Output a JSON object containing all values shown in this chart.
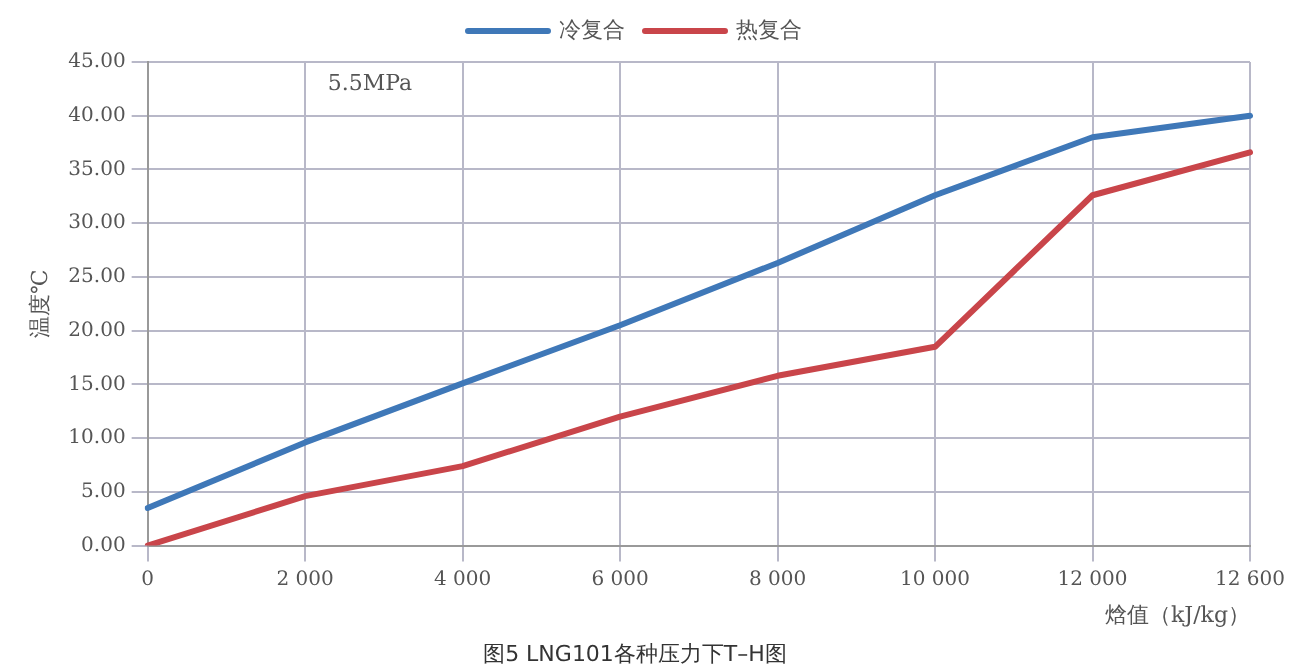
{
  "chart_data": {
    "type": "line",
    "title": "图5 LNG101各种压力下T–H图",
    "xlabel": "焓值（kJ/kg）",
    "ylabel": "温度℃",
    "annotations": [
      "5.5MPa"
    ],
    "categories": [
      "0",
      "2 000",
      "4 000",
      "6 000",
      "8 000",
      "10 000",
      "12 000",
      "12 600"
    ],
    "series": [
      {
        "name": "冷复合",
        "color": "#3f78b8",
        "values": [
          3.5,
          9.6,
          15.1,
          20.5,
          26.3,
          32.6,
          38.0,
          40.0
        ]
      },
      {
        "name": "热复合",
        "color": "#c9454a",
        "values": [
          0,
          4.6,
          7.4,
          12.0,
          15.8,
          18.5,
          32.6,
          36.6
        ]
      }
    ],
    "ylim": [
      0,
      45
    ],
    "yticks": [
      {
        "value": 0,
        "label": "0.00"
      },
      {
        "value": 5,
        "label": "5.00"
      },
      {
        "value": 10,
        "label": "10.00"
      },
      {
        "value": 15,
        "label": "15.00"
      },
      {
        "value": 20,
        "label": "20.00"
      },
      {
        "value": 25,
        "label": "25.00"
      },
      {
        "value": 30,
        "label": "30.00"
      },
      {
        "value": 35,
        "label": "35.00"
      },
      {
        "value": 40,
        "label": "40.00"
      },
      {
        "value": 45,
        "label": "45.00"
      }
    ],
    "grid": true,
    "legend": "top",
    "marker": "none",
    "line_style": "solid"
  }
}
